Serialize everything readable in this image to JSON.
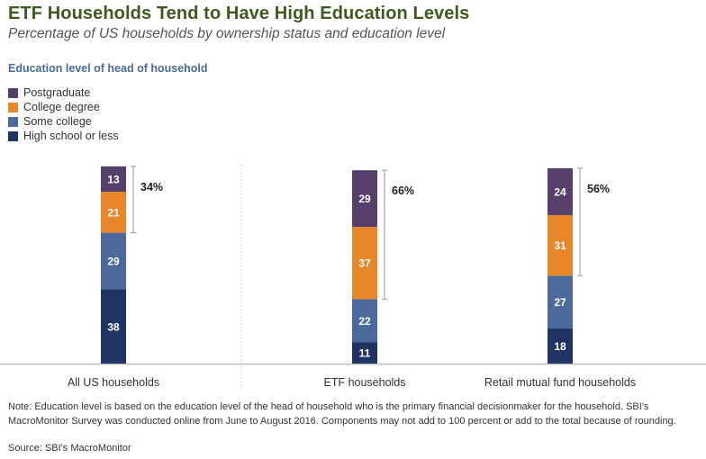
{
  "title": "ETF Households Tend to Have High Education Levels",
  "subtitle": "Percentage of US households by ownership status and education level",
  "chart_data": {
    "type": "bar",
    "stacked": true,
    "title": "ETF Households Tend to Have High Education Levels",
    "subtitle": "Percentage of US households by ownership status and education level",
    "legend_title": "Education level of head of household",
    "legend_position": "top-left",
    "categories": [
      "All US households",
      "ETF households",
      "Retail mutual fund households"
    ],
    "series": [
      {
        "name": "High school or less",
        "color": "#1f3463",
        "values": [
          38,
          11,
          18
        ]
      },
      {
        "name": "Some college",
        "color": "#4b6a9b",
        "values": [
          29,
          22,
          27
        ]
      },
      {
        "name": "College degree",
        "color": "#e8862a",
        "values": [
          21,
          37,
          31
        ]
      },
      {
        "name": "Postgraduate",
        "color": "#56406b",
        "values": [
          13,
          29,
          24
        ]
      }
    ],
    "legend_order": [
      "Postgraduate",
      "College degree",
      "Some college",
      "High school or less"
    ],
    "bracket_totals": [
      "34%",
      "66%",
      "56%"
    ],
    "bracket_description": "College degree + Postgraduate",
    "ylim": [
      0,
      100
    ],
    "grid": false,
    "xlabel": "",
    "ylabel": ""
  },
  "note": "Note: Education level is based on the education level of the head of household who is the primary financial decisionmaker for the household. SBI's MacroMonitor Survey was conducted online from June to August 2016. Components may not add to 100 percent or add to the total because of rounding.",
  "source": "Source: SBI's MacroMonitor"
}
